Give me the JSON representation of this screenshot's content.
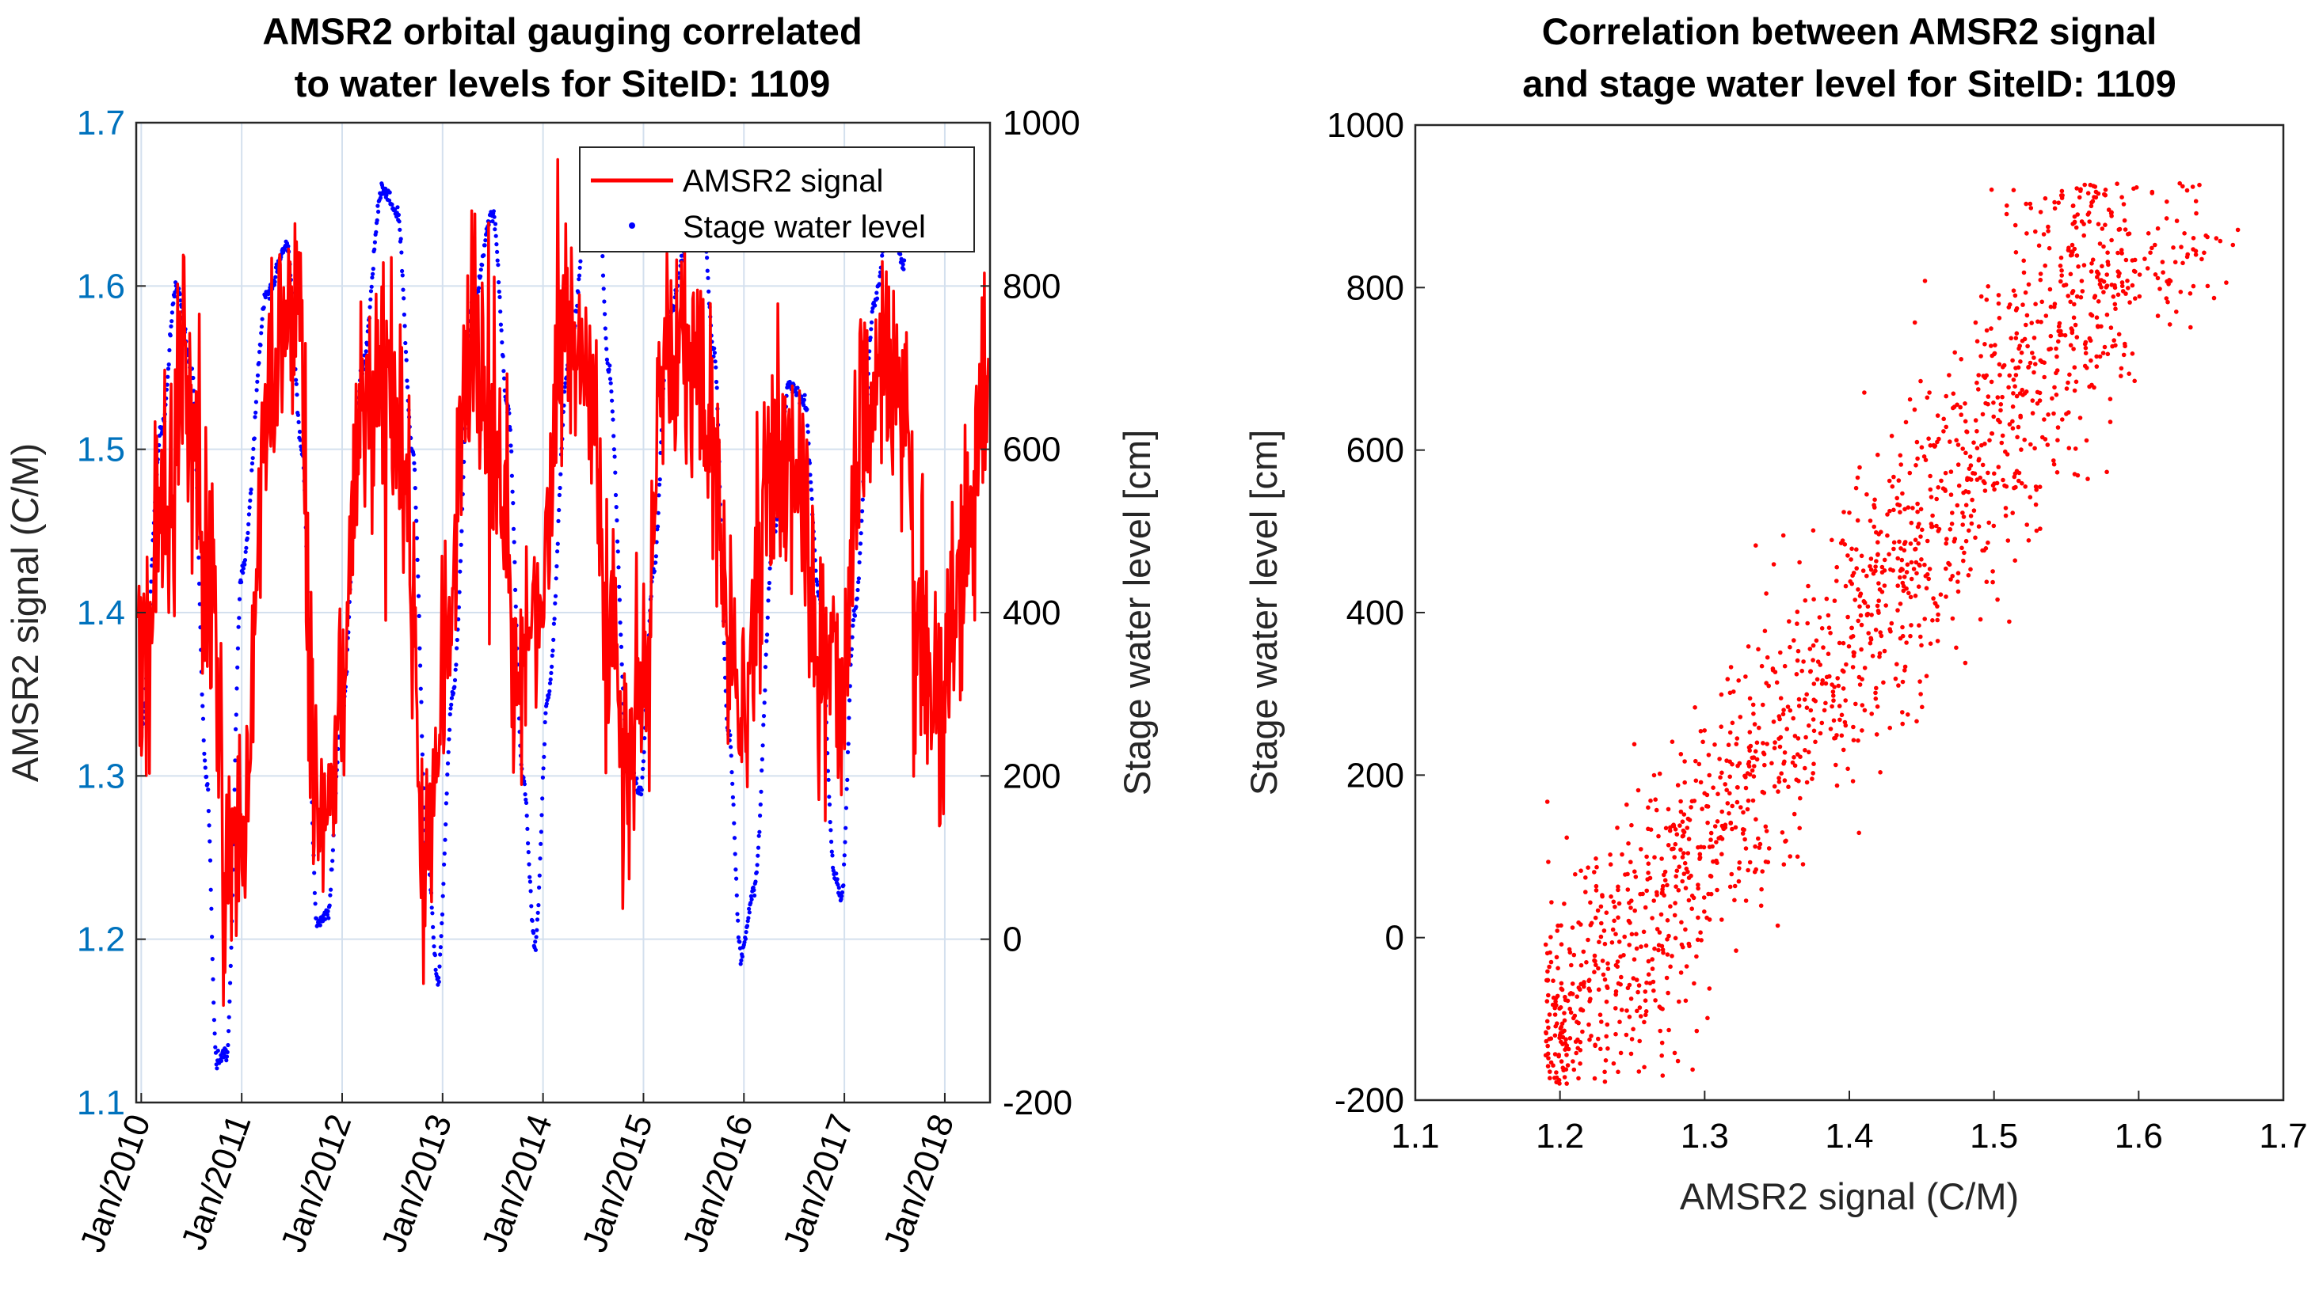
{
  "colors": {
    "signal": "#ff0000",
    "stage": "#0000ff",
    "left_axis": "#0072bd",
    "axis_text": "#262626",
    "grid": "#d4e0ee"
  },
  "chart_data": [
    {
      "type": "line",
      "title_lines": [
        "AMSR2 orbital gauging correlated",
        "to water levels for SiteID: 1109"
      ],
      "xlabel": "",
      "ylabel_left": "AMSR2 signal (C/M)",
      "ylabel_right": "Stage water level [cm]",
      "xlim": [
        2009.95,
        2018.45
      ],
      "ylim_left": [
        1.1,
        1.7
      ],
      "ylim_right": [
        -200,
        1000
      ],
      "x_ticks": [
        2010,
        2011,
        2012,
        2013,
        2014,
        2015,
        2016,
        2017,
        2018
      ],
      "x_tick_labels": [
        "Jan/2010",
        "Jan/2011",
        "Jan/2012",
        "Jan/2013",
        "Jan/2014",
        "Jan/2015",
        "Jan/2016",
        "Jan/2017",
        "Jan/2018"
      ],
      "y_ticks_left": [
        1.1,
        1.2,
        1.3,
        1.4,
        1.5,
        1.6,
        1.7
      ],
      "y_tick_labels_left": [
        "1.1",
        "1.2",
        "1.3",
        "1.4",
        "1.5",
        "1.6",
        "1.7"
      ],
      "y_ticks_right": [
        -200,
        0,
        200,
        400,
        600,
        800,
        1000
      ],
      "y_tick_labels_right": [
        "-200",
        "0",
        "200",
        "400",
        "600",
        "800",
        "1000"
      ],
      "grid": true,
      "legend_position": "top-right",
      "series": [
        {
          "name": "AMSR2 signal",
          "style": "line",
          "axis": "left",
          "control_points": {
            "x": [
              2010.0,
              2010.2,
              2010.45,
              2010.7,
              2010.85,
              2011.0,
              2011.3,
              2011.55,
              2011.75,
              2011.95,
              2012.2,
              2012.45,
              2012.65,
              2012.82,
              2013.0,
              2013.3,
              2013.55,
              2013.75,
              2013.95,
              2014.2,
              2014.45,
              2014.65,
              2014.85,
              2015.0,
              2015.2,
              2015.45,
              2015.7,
              2015.85,
              2016.0,
              2016.3,
              2016.55,
              2016.75,
              2016.95,
              2017.2,
              2017.5,
              2017.75,
              2017.95,
              2018.15,
              2018.45
            ],
            "y": [
              1.35,
              1.45,
              1.55,
              1.4,
              1.24,
              1.26,
              1.55,
              1.58,
              1.27,
              1.32,
              1.52,
              1.53,
              1.45,
              1.25,
              1.35,
              1.58,
              1.5,
              1.36,
              1.4,
              1.58,
              1.55,
              1.4,
              1.3,
              1.35,
              1.55,
              1.58,
              1.5,
              1.37,
              1.33,
              1.5,
              1.48,
              1.37,
              1.35,
              1.52,
              1.56,
              1.4,
              1.32,
              1.42,
              1.55
            ]
          },
          "noise_amplitude": 0.04
        },
        {
          "name": "Stage water level",
          "style": "points",
          "axis": "right",
          "control_points": {
            "x": [
              2010.0,
              2010.2,
              2010.35,
              2010.5,
              2010.65,
              2010.75,
              2010.85,
              2011.0,
              2011.25,
              2011.45,
              2011.6,
              2011.75,
              2011.85,
              2012.0,
              2012.2,
              2012.4,
              2012.55,
              2012.7,
              2012.85,
              2012.95,
              2013.1,
              2013.3,
              2013.5,
              2013.65,
              2013.8,
              2013.92,
              2014.05,
              2014.25,
              2014.45,
              2014.55,
              2014.65,
              2014.85,
              2014.97,
              2015.1,
              2015.25,
              2015.45,
              2015.6,
              2015.7,
              2015.85,
              2015.97,
              2016.1,
              2016.3,
              2016.45,
              2016.6,
              2016.75,
              2016.9,
              2016.97,
              2017.1,
              2017.3,
              2017.45,
              2017.6
            ],
            "y": [
              260,
              620,
              800,
              700,
              200,
              -150,
              -140,
              450,
              790,
              850,
              600,
              20,
              30,
              280,
              700,
              920,
              890,
              600,
              100,
              -50,
              300,
              780,
              890,
              650,
              200,
              -10,
              300,
              700,
              900,
              920,
              700,
              220,
              180,
              450,
              760,
              860,
              870,
              720,
              250,
              -20,
              60,
              500,
              680,
              660,
              420,
              80,
              50,
              400,
              780,
              900,
              820
            ]
          }
        }
      ]
    },
    {
      "type": "scatter",
      "title_lines": [
        "Correlation between AMSR2 signal",
        "and stage water level for SiteID: 1109"
      ],
      "xlabel": "AMSR2 signal (C/M)",
      "ylabel": "Stage water level [cm]",
      "xlim": [
        1.1,
        1.7
      ],
      "ylim": [
        -200,
        1000
      ],
      "x_ticks": [
        1.1,
        1.2,
        1.3,
        1.4,
        1.5,
        1.6,
        1.7
      ],
      "x_tick_labels": [
        "1.1",
        "1.2",
        "1.3",
        "1.4",
        "1.5",
        "1.6",
        "1.7"
      ],
      "y_ticks": [
        -200,
        0,
        200,
        400,
        600,
        800,
        1000
      ],
      "y_tick_labels": [
        "-200",
        "0",
        "200",
        "400",
        "600",
        "800",
        "1000"
      ],
      "grid": false,
      "series": [
        {
          "name": "points",
          "point_count": 1600,
          "trend": {
            "x": [
              1.2,
              1.3,
              1.4,
              1.5,
              1.55,
              1.6,
              1.65
            ],
            "y": [
              -150,
              120,
              350,
              620,
              760,
              850,
              860
            ]
          },
          "spread": {
            "x": 0.035,
            "y": 150
          },
          "points_x_range": [
            1.19,
            1.67
          ],
          "points_y_range": [
            -180,
            930
          ]
        }
      ]
    }
  ]
}
